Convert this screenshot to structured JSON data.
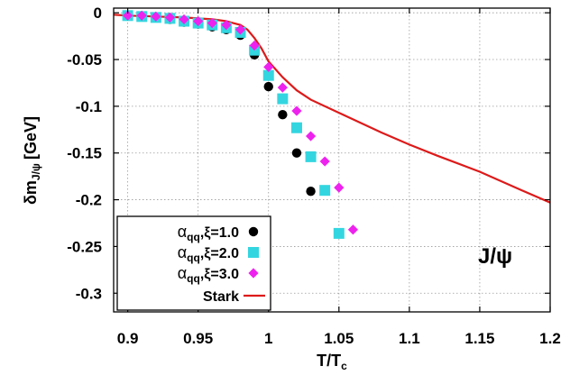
{
  "chart_data": {
    "type": "scatter",
    "xlabel": "T/T",
    "xlabel_sub": "c",
    "ylabel": "δm",
    "ylabel_sub": "J/ψ",
    "ylabel_unit": "[GeV]",
    "xlim": [
      0.89,
      1.2
    ],
    "ylim": [
      -0.32,
      0.005
    ],
    "xticks": [
      0.9,
      0.95,
      1.0,
      1.05,
      1.1,
      1.15,
      1.2
    ],
    "xtick_labels": [
      "0.9",
      "0.95",
      "1",
      "1.05",
      "1.1",
      "1.15",
      "1.2"
    ],
    "yticks": [
      0,
      -0.05,
      -0.1,
      -0.15,
      -0.2,
      -0.25,
      -0.3
    ],
    "ytick_labels": [
      "0",
      "-0.05",
      "-0.1",
      "-0.15",
      "-0.2",
      "-0.25",
      "-0.3"
    ],
    "grid": true,
    "legend_position": "bottom-left",
    "annotation": "J/ψ",
    "series": [
      {
        "name": "α",
        "name_sub": "qq",
        "name_suffix": ",ξ=1.0",
        "marker": "circle",
        "color": "#000000",
        "x": [
          0.9,
          0.91,
          0.92,
          0.93,
          0.94,
          0.95,
          0.96,
          0.97,
          0.98,
          0.99,
          1.0,
          1.01,
          1.02,
          1.03
        ],
        "y": [
          -0.003,
          -0.004,
          -0.005,
          -0.007,
          -0.01,
          -0.012,
          -0.015,
          -0.018,
          -0.024,
          -0.045,
          -0.079,
          -0.109,
          -0.15,
          -0.191
        ]
      },
      {
        "name": "α",
        "name_sub": "qq",
        "name_suffix": ",ξ=2.0",
        "marker": "square",
        "color": "#33d6e0",
        "x": [
          0.9,
          0.91,
          0.92,
          0.93,
          0.94,
          0.95,
          0.96,
          0.97,
          0.98,
          0.99,
          1.0,
          1.01,
          1.02,
          1.03,
          1.04,
          1.05
        ],
        "y": [
          -0.003,
          -0.004,
          -0.005,
          -0.006,
          -0.009,
          -0.011,
          -0.013,
          -0.016,
          -0.021,
          -0.04,
          -0.067,
          -0.092,
          -0.123,
          -0.154,
          -0.19,
          -0.236
        ]
      },
      {
        "name": "α",
        "name_sub": "qq",
        "name_suffix": ",ξ=3.0",
        "marker": "diamond",
        "color": "#ee22ee",
        "x": [
          0.9,
          0.91,
          0.92,
          0.93,
          0.94,
          0.95,
          0.96,
          0.97,
          0.98,
          0.99,
          1.0,
          1.01,
          1.02,
          1.03,
          1.04,
          1.05,
          1.06
        ],
        "y": [
          -0.003,
          -0.003,
          -0.004,
          -0.005,
          -0.007,
          -0.009,
          -0.011,
          -0.013,
          -0.018,
          -0.035,
          -0.058,
          -0.08,
          -0.105,
          -0.132,
          -0.159,
          -0.187,
          -0.232
        ]
      },
      {
        "name": "Stark",
        "marker": "line",
        "color": "#dd1a1a",
        "x": [
          0.89,
          0.9,
          0.92,
          0.94,
          0.96,
          0.97,
          0.98,
          0.985,
          0.99,
          0.995,
          1.0,
          1.01,
          1.02,
          1.03,
          1.05,
          1.08,
          1.1,
          1.12,
          1.15,
          1.18,
          1.2
        ],
        "y": [
          -0.002,
          -0.003,
          -0.004,
          -0.005,
          -0.007,
          -0.009,
          -0.013,
          -0.018,
          -0.027,
          -0.038,
          -0.052,
          -0.069,
          -0.083,
          -0.093,
          -0.107,
          -0.128,
          -0.141,
          -0.153,
          -0.17,
          -0.19,
          -0.203
        ]
      }
    ]
  }
}
